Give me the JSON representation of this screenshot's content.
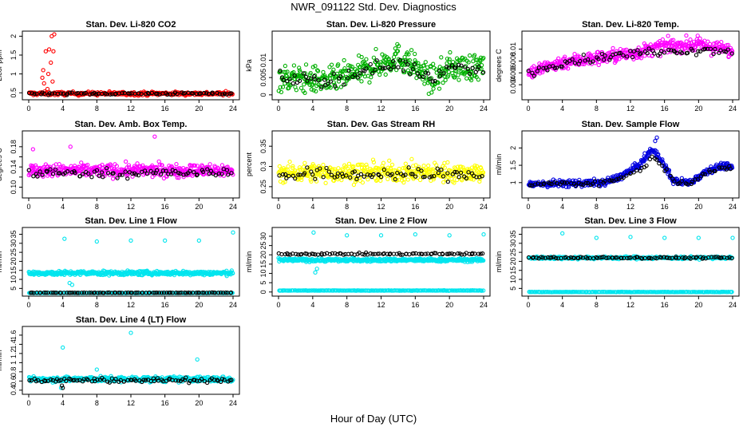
{
  "title": "NWR_091122 Std. Dev. Diagnostics",
  "xlabel": "Hour of Day (UTC)",
  "chart_data": [
    {
      "type": "scatter",
      "title": "Stan. Dev. Li-820 CO2",
      "ylabel": "Licor ppm",
      "xlim": [
        0,
        24
      ],
      "ylim": [
        0.4,
        2.05
      ],
      "yticks": [
        0.5,
        1.0,
        1.5,
        2.0
      ],
      "xticks": [
        0,
        4,
        8,
        12,
        16,
        20,
        24
      ],
      "grid": false,
      "series": [
        {
          "color": "#ff0000",
          "base": 0.48,
          "spread": 0.05,
          "count": 300,
          "outliers": [
            [
              1.6,
              0.9
            ],
            [
              1.8,
              0.75
            ],
            [
              2.0,
              1.6
            ],
            [
              2.2,
              0.6
            ],
            [
              2.4,
              1.65
            ],
            [
              2.6,
              1.3
            ],
            [
              2.7,
              2.0
            ],
            [
              2.9,
              1.6
            ],
            [
              3.0,
              2.05
            ],
            [
              1.7,
              1.1
            ],
            [
              2.3,
              1.0
            ],
            [
              2.8,
              0.8
            ]
          ]
        },
        {
          "color": "#000000",
          "base": 0.48,
          "spread": 0.03,
          "count": 80,
          "outliers": []
        }
      ]
    },
    {
      "type": "scatter",
      "title": "Stan. Dev. Li-820 Pressure",
      "ylabel": "kPa",
      "xlim": [
        0,
        24
      ],
      "ylim": [
        -0.0005,
        0.0175
      ],
      "yticks": [
        0.0,
        0.005,
        0.01
      ],
      "xticks": [
        0,
        4,
        8,
        12,
        16,
        20,
        24
      ],
      "grid": false,
      "series": [
        {
          "color": "#00b000",
          "base": 0.007,
          "spread": 0.004,
          "count": 420,
          "trend": [
            [
              0,
              0.005
            ],
            [
              6,
              0.004
            ],
            [
              10,
              0.007
            ],
            [
              14,
              0.011
            ],
            [
              16,
              0.008
            ],
            [
              18,
              0.004
            ],
            [
              20,
              0.008
            ],
            [
              24,
              0.008
            ]
          ],
          "outliers": []
        },
        {
          "color": "#000000",
          "base": 0.007,
          "spread": 0.002,
          "count": 80,
          "trend": [
            [
              0,
              0.005
            ],
            [
              6,
              0.004
            ],
            [
              10,
              0.007
            ],
            [
              14,
              0.009
            ],
            [
              16,
              0.007
            ],
            [
              18,
              0.005
            ],
            [
              20,
              0.008
            ],
            [
              24,
              0.008
            ]
          ],
          "outliers": []
        }
      ]
    },
    {
      "type": "scatter",
      "title": "Stan. Dev. Li-820 Temp.",
      "ylabel": "degrees C",
      "xlim": [
        0,
        24
      ],
      "ylim": [
        0.002,
        0.0125
      ],
      "yticks": [
        0.004,
        0.006,
        0.008,
        0.01
      ],
      "xticks": [
        0,
        4,
        8,
        12,
        16,
        20,
        24
      ],
      "grid": false,
      "series": [
        {
          "color": "#ff00ff",
          "base": 0.008,
          "spread": 0.0012,
          "count": 420,
          "trend": [
            [
              0,
              0.006
            ],
            [
              4,
              0.0078
            ],
            [
              8,
              0.0085
            ],
            [
              12,
              0.0092
            ],
            [
              16,
              0.0105
            ],
            [
              20,
              0.0108
            ],
            [
              24,
              0.0096
            ]
          ],
          "outliers": []
        },
        {
          "color": "#000000",
          "base": 0.008,
          "spread": 0.0007,
          "count": 80,
          "trend": [
            [
              0,
              0.006
            ],
            [
              4,
              0.0078
            ],
            [
              8,
              0.0085
            ],
            [
              12,
              0.0092
            ],
            [
              16,
              0.0098
            ],
            [
              20,
              0.0098
            ],
            [
              24,
              0.0098
            ]
          ],
          "outliers": []
        }
      ]
    },
    {
      "type": "scatter",
      "title": "Stan. Dev. Amb. Box Temp.",
      "ylabel": "degrees C",
      "xlim": [
        0,
        24
      ],
      "ylim": [
        0.085,
        0.205
      ],
      "yticks": [
        0.1,
        0.12,
        0.14,
        0.16,
        0.18
      ],
      "ytick_labels": [
        "0.10",
        "",
        "0.14",
        "",
        "0.18"
      ],
      "xticks": [
        0,
        4,
        8,
        12,
        16,
        20,
        24
      ],
      "grid": false,
      "series": [
        {
          "color": "#ff00ff",
          "base": 0.133,
          "spread": 0.013,
          "count": 420,
          "outliers": [
            [
              0.5,
              0.175
            ],
            [
              4.9,
              0.18
            ],
            [
              14.8,
              0.2
            ]
          ]
        },
        {
          "color": "#000000",
          "base": 0.128,
          "spread": 0.009,
          "count": 80,
          "outliers": []
        }
      ]
    },
    {
      "type": "scatter",
      "title": "Stan. Dev. Gas Stream RH",
      "ylabel": "percent",
      "xlim": [
        0,
        24
      ],
      "ylim": [
        0.23,
        0.38
      ],
      "yticks": [
        0.25,
        0.3,
        0.35
      ],
      "xticks": [
        0,
        4,
        8,
        12,
        16,
        20,
        24
      ],
      "grid": false,
      "series": [
        {
          "color": "#ffff00",
          "base": 0.285,
          "spread": 0.024,
          "count": 420,
          "outliers": []
        },
        {
          "color": "#000000",
          "base": 0.28,
          "spread": 0.016,
          "count": 80,
          "outliers": []
        }
      ]
    },
    {
      "type": "scatter",
      "title": "Stan. Dev. Sample Flow",
      "ylabel": "ml/min",
      "xlim": [
        0,
        24
      ],
      "ylim": [
        0.65,
        2.4
      ],
      "yticks": [
        1.0,
        1.5,
        2.0
      ],
      "xticks": [
        0,
        4,
        8,
        12,
        16,
        20,
        24
      ],
      "grid": false,
      "series": [
        {
          "color": "#0000e0",
          "base": 1.0,
          "spread": 0.1,
          "count": 420,
          "trend": [
            [
              0,
              0.95
            ],
            [
              9,
              1.0
            ],
            [
              11,
              1.2
            ],
            [
              13,
              1.5
            ],
            [
              14.5,
              1.95
            ],
            [
              15.5,
              1.7
            ],
            [
              17,
              1.05
            ],
            [
              19,
              1.0
            ],
            [
              21,
              1.35
            ],
            [
              23,
              1.5
            ],
            [
              24,
              1.4
            ]
          ],
          "outliers": [
            [
              15.1,
              2.3
            ],
            [
              14.9,
              2.2
            ]
          ]
        },
        {
          "color": "#000000",
          "base": 1.0,
          "spread": 0.07,
          "count": 80,
          "trend": [
            [
              0,
              0.95
            ],
            [
              9,
              1.0
            ],
            [
              11,
              1.15
            ],
            [
              13,
              1.35
            ],
            [
              14.5,
              1.7
            ],
            [
              15.5,
              1.6
            ],
            [
              17,
              1.05
            ],
            [
              19,
              1.0
            ],
            [
              21,
              1.3
            ],
            [
              23,
              1.4
            ],
            [
              24,
              1.4
            ]
          ],
          "outliers": []
        }
      ]
    },
    {
      "type": "scatter",
      "title": "Stan. Dev. Line 1 Flow",
      "ylabel": "ml/min",
      "xlim": [
        0,
        24
      ],
      "ylim": [
        2.5,
        37
      ],
      "yticks": [
        5,
        10,
        15,
        20,
        25,
        30,
        35
      ],
      "xticks": [
        0,
        4,
        8,
        12,
        16,
        20,
        24
      ],
      "grid": false,
      "series": [
        {
          "color": "#00e5ee",
          "base": 13.5,
          "spread": 1.2,
          "count": 420,
          "outliers": [
            [
              4.2,
              32.5
            ],
            [
              8.0,
              31.0
            ],
            [
              12.0,
              31.5
            ],
            [
              16.0,
              31.5
            ],
            [
              20.0,
              31.5
            ],
            [
              24.0,
              36.0
            ],
            [
              4.8,
              8.0
            ],
            [
              5.1,
              7.0
            ]
          ]
        },
        {
          "color": "#00e5ee",
          "base": 2.5,
          "spread": 0.1,
          "count": 200,
          "outliers": []
        },
        {
          "color": "#000000",
          "base": 2.6,
          "spread": 0.1,
          "count": 90,
          "outliers": []
        }
      ]
    },
    {
      "type": "scatter",
      "title": "Stan. Dev. Line 2 Flow",
      "ylabel": "ml/min",
      "xlim": [
        0,
        24
      ],
      "ylim": [
        -0.5,
        33
      ],
      "yticks": [
        0,
        5,
        10,
        15,
        20,
        25,
        30
      ],
      "xticks": [
        0,
        4,
        8,
        12,
        16,
        20,
        24
      ],
      "grid": false,
      "series": [
        {
          "color": "#00e5ee",
          "base": 17.2,
          "spread": 0.9,
          "count": 420,
          "outliers": [
            [
              4.1,
              32.0
            ],
            [
              8.0,
              30.5
            ],
            [
              12.0,
              30.5
            ],
            [
              16.0,
              31.0
            ],
            [
              20.0,
              30.5
            ],
            [
              24.0,
              31.0
            ],
            [
              4.3,
              10.5
            ],
            [
              4.5,
              12.5
            ]
          ]
        },
        {
          "color": "#00e5ee",
          "base": 0.8,
          "spread": 0.1,
          "count": 200,
          "outliers": []
        },
        {
          "color": "#000000",
          "base": 20.5,
          "spread": 0.5,
          "count": 90,
          "outliers": []
        }
      ]
    },
    {
      "type": "scatter",
      "title": "Stan. Dev. Line 3 Flow",
      "ylabel": "ml/min",
      "xlim": [
        0,
        24
      ],
      "ylim": [
        2.5,
        37
      ],
      "yticks": [
        5,
        10,
        15,
        20,
        25,
        30,
        35
      ],
      "xticks": [
        0,
        4,
        8,
        12,
        16,
        20,
        24
      ],
      "grid": false,
      "series": [
        {
          "color": "#00e5ee",
          "base": 22.0,
          "spread": 0.8,
          "count": 300,
          "outliers": [
            [
              4.0,
              35.5
            ],
            [
              8.0,
              33.0
            ],
            [
              12.0,
              33.5
            ],
            [
              16.0,
              33.0
            ],
            [
              20.0,
              33.0
            ],
            [
              24.0,
              33.0
            ]
          ]
        },
        {
          "color": "#00e5ee",
          "base": 3.0,
          "spread": 0.1,
          "count": 200,
          "outliers": []
        },
        {
          "color": "#000000",
          "base": 22.0,
          "spread": 0.5,
          "count": 90,
          "outliers": []
        }
      ]
    },
    {
      "type": "scatter",
      "title": "Stan. Dev. Line 4 (LT) Flow",
      "ylabel": "ml/min",
      "xlim": [
        0,
        24
      ],
      "ylim": [
        0.38,
        1.72
      ],
      "yticks": [
        0.4,
        0.6,
        0.8,
        1.0,
        1.2,
        1.4,
        1.6
      ],
      "xticks": [
        0,
        4,
        8,
        12,
        16,
        20,
        24
      ],
      "grid": false,
      "series": [
        {
          "color": "#00e5ee",
          "base": 0.64,
          "spread": 0.06,
          "count": 420,
          "outliers": [
            [
              4.0,
              1.33
            ],
            [
              12.0,
              1.65
            ],
            [
              19.8,
              1.07
            ],
            [
              8.0,
              0.85
            ],
            [
              3.8,
              0.45
            ]
          ]
        },
        {
          "color": "#000000",
          "base": 0.62,
          "spread": 0.05,
          "count": 90,
          "outliers": [
            [
              4.0,
              0.45
            ],
            [
              3.9,
              0.5
            ]
          ]
        }
      ]
    }
  ]
}
